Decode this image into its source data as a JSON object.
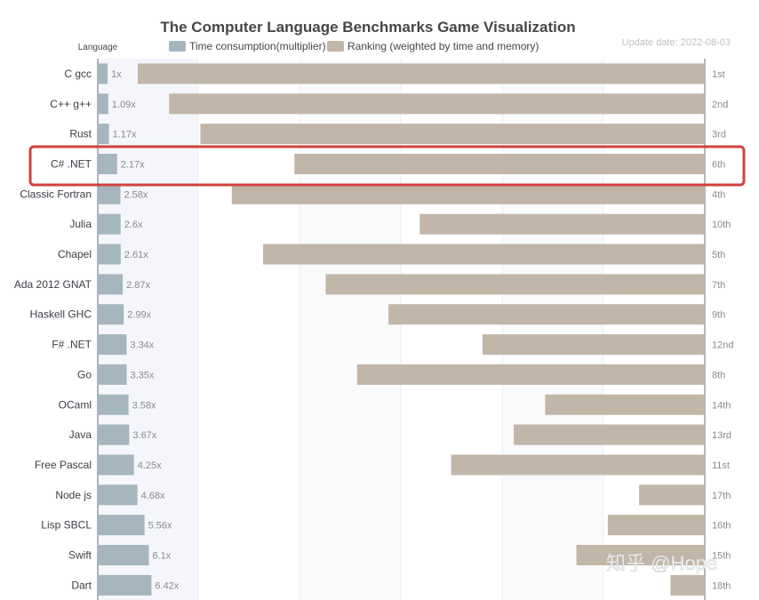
{
  "chart_data": {
    "type": "bar",
    "title": "The Computer Language Benchmarks Game Visualization",
    "axis_label": "Language",
    "update_date": "Update date: 2022-08-03",
    "legend": [
      {
        "name": "Time consumption(multiplier)",
        "color": "#a5b6bf"
      },
      {
        "name": "Ranking (weighted by time and memory)",
        "color": "#c2b6a8"
      }
    ],
    "highlighted_category": "C# .NET",
    "highlight_color": "#d0413e",
    "ranking_scale_max": 19,
    "rows": [
      {
        "language": "C gcc",
        "multiplier": 1,
        "multiplier_label": "1x",
        "rank": 1,
        "rank_label": "1st"
      },
      {
        "language": "C++ g++",
        "multiplier": 1.09,
        "multiplier_label": "1.09x",
        "rank": 2,
        "rank_label": "2nd"
      },
      {
        "language": "Rust",
        "multiplier": 1.17,
        "multiplier_label": "1.17x",
        "rank": 3,
        "rank_label": "3rd"
      },
      {
        "language": "C# .NET",
        "multiplier": 2.17,
        "multiplier_label": "2.17x",
        "rank": 6,
        "rank_label": "6th"
      },
      {
        "language": "Classic Fortran",
        "multiplier": 2.58,
        "multiplier_label": "2.58x",
        "rank": 4,
        "rank_label": "4th"
      },
      {
        "language": "Julia",
        "multiplier": 2.6,
        "multiplier_label": "2.6x",
        "rank": 10,
        "rank_label": "10th"
      },
      {
        "language": "Chapel",
        "multiplier": 2.61,
        "multiplier_label": "2.61x",
        "rank": 5,
        "rank_label": "5th"
      },
      {
        "language": "Ada 2012 GNAT",
        "multiplier": 2.87,
        "multiplier_label": "2.87x",
        "rank": 7,
        "rank_label": "7th"
      },
      {
        "language": "Haskell GHC",
        "multiplier": 2.99,
        "multiplier_label": "2.99x",
        "rank": 9,
        "rank_label": "9th"
      },
      {
        "language": "F# .NET",
        "multiplier": 3.34,
        "multiplier_label": "3.34x",
        "rank": 12,
        "rank_label": "12nd"
      },
      {
        "language": "Go",
        "multiplier": 3.35,
        "multiplier_label": "3.35x",
        "rank": 8,
        "rank_label": "8th"
      },
      {
        "language": "OCaml",
        "multiplier": 3.58,
        "multiplier_label": "3.58x",
        "rank": 14,
        "rank_label": "14th"
      },
      {
        "language": "Java",
        "multiplier": 3.67,
        "multiplier_label": "3.67x",
        "rank": 13,
        "rank_label": "13rd"
      },
      {
        "language": "Free Pascal",
        "multiplier": 4.25,
        "multiplier_label": "4.25x",
        "rank": 11,
        "rank_label": "11st"
      },
      {
        "language": "Node js",
        "multiplier": 4.68,
        "multiplier_label": "4.68x",
        "rank": 17,
        "rank_label": "17th"
      },
      {
        "language": "Lisp SBCL",
        "multiplier": 5.56,
        "multiplier_label": "5.56x",
        "rank": 16,
        "rank_label": "16th"
      },
      {
        "language": "Swift",
        "multiplier": 6.1,
        "multiplier_label": "6.1x",
        "rank": 15,
        "rank_label": "15th"
      },
      {
        "language": "Dart",
        "multiplier": 6.42,
        "multiplier_label": "6.42x",
        "rank": 18,
        "rank_label": "18th"
      }
    ]
  },
  "watermark": "知乎 @Hope"
}
